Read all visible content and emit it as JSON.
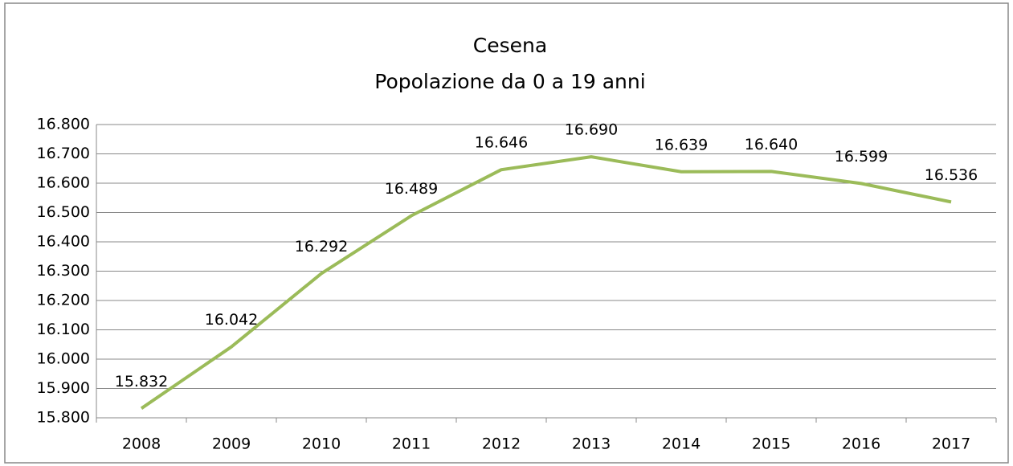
{
  "chart_data": {
    "type": "line",
    "title": "Cesena",
    "subtitle": "Popolazione da 0 a 19 anni",
    "categories": [
      "2008",
      "2009",
      "2010",
      "2011",
      "2012",
      "2013",
      "2014",
      "2015",
      "2016",
      "2017"
    ],
    "series": [
      {
        "name": "Popolazione da 0 a 19 anni",
        "color": "#9bbb59",
        "values": [
          15832,
          16042,
          16292,
          16489,
          16646,
          16690,
          16639,
          16640,
          16599,
          16536
        ],
        "value_labels": [
          "15.832",
          "16.042",
          "16.292",
          "16.489",
          "16.646",
          "16.690",
          "16.639",
          "16.640",
          "16.599",
          "16.536"
        ]
      }
    ],
    "ylim": [
      15800,
      16800
    ],
    "yticks": [
      {
        "value": 15800,
        "label": "15.800"
      },
      {
        "value": 15900,
        "label": "15.900"
      },
      {
        "value": 16000,
        "label": "16.000"
      },
      {
        "value": 16100,
        "label": "16.100"
      },
      {
        "value": 16200,
        "label": "16.200"
      },
      {
        "value": 16300,
        "label": "16.300"
      },
      {
        "value": 16400,
        "label": "16.400"
      },
      {
        "value": 16500,
        "label": "16.500"
      },
      {
        "value": 16600,
        "label": "16.600"
      },
      {
        "value": 16700,
        "label": "16.700"
      },
      {
        "value": 16800,
        "label": "16.800"
      }
    ],
    "grid": true
  }
}
